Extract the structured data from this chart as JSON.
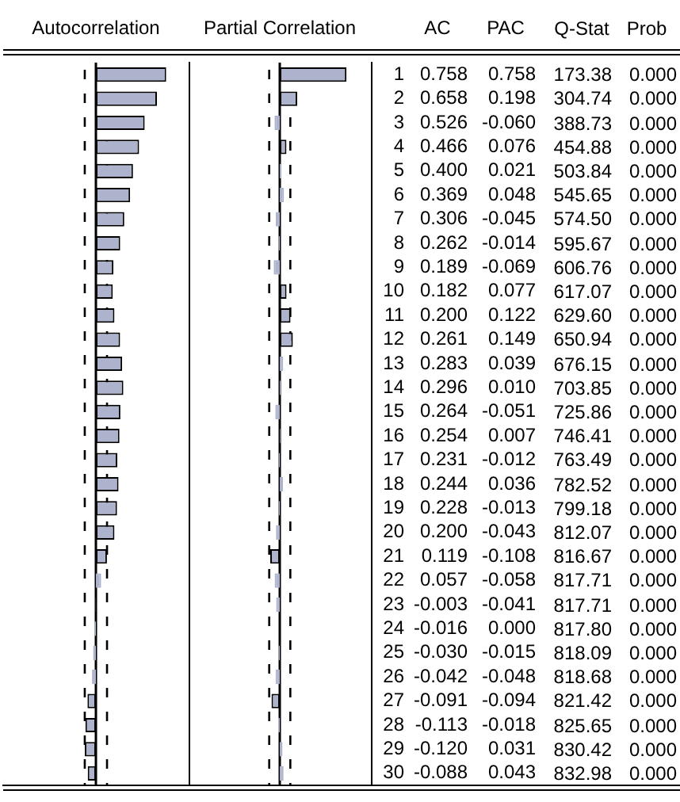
{
  "chart_data": [
    {
      "type": "bar",
      "orientation": "horizontal",
      "title": "Autocorrelation",
      "categories": [
        "1",
        "2",
        "3",
        "4",
        "5",
        "6",
        "7",
        "8",
        "9",
        "10",
        "11",
        "12",
        "13",
        "14",
        "15",
        "16",
        "17",
        "18",
        "19",
        "20",
        "21",
        "22",
        "23",
        "24",
        "25",
        "26",
        "27",
        "28",
        "29",
        "30"
      ],
      "series": [
        {
          "name": "AC",
          "color": "#adb3cc",
          "values": [
            0.758,
            0.658,
            0.526,
            0.466,
            0.4,
            0.369,
            0.306,
            0.262,
            0.189,
            0.182,
            0.2,
            0.261,
            0.283,
            0.296,
            0.264,
            0.254,
            0.231,
            0.244,
            0.228,
            0.2,
            0.119,
            0.057,
            -0.003,
            -0.016,
            -0.03,
            -0.042,
            -0.091,
            -0.113,
            -0.12,
            -0.088
          ],
          "value_labels": [
            "0.758",
            "0.658",
            "0.526",
            "0.466",
            "0.400",
            "0.369",
            "0.306",
            "0.262",
            "0.189",
            "0.182",
            "0.200",
            "0.261",
            "0.283",
            "0.296",
            "0.264",
            "0.254",
            "0.231",
            "0.244",
            "0.228",
            "0.200",
            "0.119",
            "0.057",
            "-0.003",
            "-0.016",
            "-0.030",
            "-0.042",
            "-0.091",
            "-0.113",
            "-0.120",
            "-0.088"
          ]
        }
      ],
      "xlim": [
        -1,
        1
      ],
      "tick_labels": false,
      "grid": false,
      "legend": false,
      "ref_lines": [
        {
          "axis": "x",
          "value": -0.12,
          "line_style": "dashed"
        },
        {
          "axis": "x",
          "value": 0.12,
          "line_style": "dashed"
        }
      ]
    },
    {
      "type": "bar",
      "orientation": "horizontal",
      "title": "Partial Correlation",
      "categories": [
        "1",
        "2",
        "3",
        "4",
        "5",
        "6",
        "7",
        "8",
        "9",
        "10",
        "11",
        "12",
        "13",
        "14",
        "15",
        "16",
        "17",
        "18",
        "19",
        "20",
        "21",
        "22",
        "23",
        "24",
        "25",
        "26",
        "27",
        "28",
        "29",
        "30"
      ],
      "series": [
        {
          "name": "PAC",
          "color": "#adb3cc",
          "values": [
            0.758,
            0.198,
            -0.06,
            0.076,
            0.021,
            0.048,
            -0.045,
            -0.014,
            -0.069,
            0.077,
            0.122,
            0.149,
            0.039,
            0.01,
            -0.051,
            0.007,
            -0.012,
            0.036,
            -0.013,
            -0.043,
            -0.108,
            -0.058,
            -0.041,
            0.0,
            -0.015,
            -0.048,
            -0.094,
            -0.018,
            0.031,
            0.043
          ],
          "value_labels": [
            "0.758",
            "0.198",
            "-0.060",
            "0.076",
            "0.021",
            "0.048",
            "-0.045",
            "-0.014",
            "-0.069",
            "0.077",
            "0.122",
            "0.149",
            "0.039",
            "0.010",
            "-0.051",
            "0.007",
            "-0.012",
            "0.036",
            "-0.013",
            "-0.043",
            "-0.108",
            "-0.058",
            "-0.041",
            "0.000",
            "-0.015",
            "-0.048",
            "-0.094",
            "-0.018",
            "0.031",
            "0.043"
          ]
        }
      ],
      "xlim": [
        -1,
        1
      ],
      "tick_labels": "y",
      "grid": false,
      "legend": false,
      "ref_lines": [
        {
          "axis": "x",
          "value": -0.12,
          "line_style": "dashed"
        },
        {
          "axis": "x",
          "value": 0.12,
          "line_style": "dashed"
        }
      ]
    },
    {
      "type": "other",
      "annotations": [
        "Q-Stat",
        "Prob",
        "173.38",
        "0.000",
        "304.74",
        "0.000",
        "388.73",
        "0.000",
        "454.88",
        "0.000",
        "503.84",
        "0.000",
        "545.65",
        "0.000",
        "574.50",
        "0.000",
        "595.67",
        "0.000",
        "606.76",
        "0.000",
        "617.07",
        "0.000",
        "629.60",
        "0.000",
        "650.94",
        "0.000",
        "676.15",
        "0.000",
        "703.85",
        "0.000",
        "725.86",
        "0.000",
        "746.41",
        "0.000",
        "763.49",
        "0.000",
        "782.52",
        "0.000",
        "799.18",
        "0.000",
        "812.07",
        "0.000",
        "816.67",
        "0.000",
        "817.71",
        "0.000",
        "817.71",
        "0.000",
        "817.80",
        "0.000",
        "818.09",
        "0.000",
        "818.68",
        "0.000",
        "821.42",
        "0.000",
        "825.65",
        "0.000",
        "830.42",
        "0.000",
        "832.98",
        "0.000"
      ]
    }
  ]
}
